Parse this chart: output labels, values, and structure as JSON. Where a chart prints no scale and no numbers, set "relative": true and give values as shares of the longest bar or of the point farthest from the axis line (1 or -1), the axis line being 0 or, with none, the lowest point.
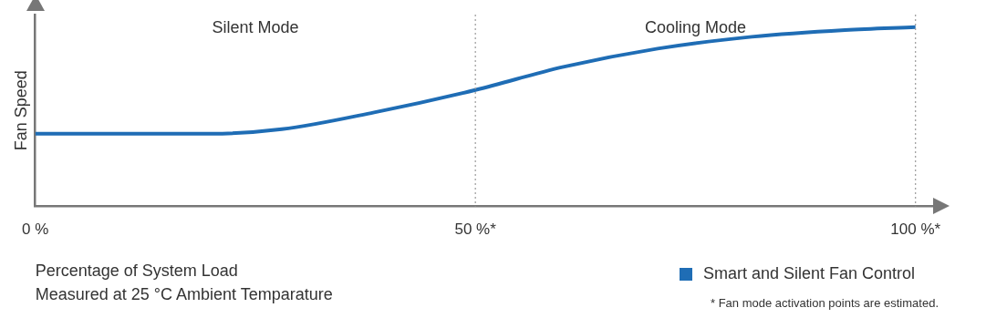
{
  "chart_data": {
    "type": "line",
    "relative": true,
    "ylabel": "Fan Speed",
    "xlabel": "Percentage of System Load\nMeasured at 25 °C Ambient Temparature",
    "x": [
      0,
      10,
      20,
      28,
      38.5,
      50,
      60,
      70.7,
      81.4,
      92,
      100
    ],
    "series": [
      {
        "name": "Smart and Silent Fan Control",
        "color": "#1f6db5",
        "values": [
          0.405,
          0.405,
          0.405,
          0.43,
          0.524,
          0.649,
          0.778,
          0.88,
          0.946,
          0.984,
          1
        ]
      }
    ],
    "xlim": [
      0,
      102
    ],
    "xticks": [
      {
        "value": 0,
        "label": "0 %"
      },
      {
        "value": 50,
        "label": "50 %*"
      },
      {
        "value": 100,
        "label": "100 %*"
      }
    ],
    "ref_lines": [
      {
        "axis": "x",
        "value": 50,
        "line_style": "dotted",
        "color": "#999999"
      },
      {
        "axis": "x",
        "value": 100,
        "line_style": "dotted",
        "color": "#999999"
      }
    ],
    "annotations": [
      "Silent Mode",
      "Cooling Mode",
      "* Fan mode activation points are estimated."
    ],
    "legend": "bottom right",
    "grid": false,
    "marker": "none",
    "line_style": "solid"
  }
}
